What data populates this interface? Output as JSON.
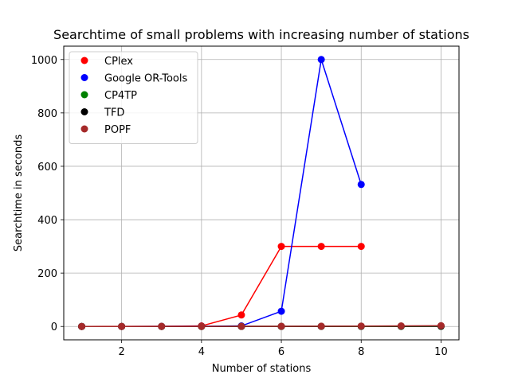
{
  "chart_data": {
    "type": "line",
    "title": "Searchtime of small problems with increasing number of stations",
    "xlabel": "Number of stations",
    "ylabel": "Searchtime in seconds",
    "xlim": [
      0.55,
      10.45
    ],
    "ylim": [
      -50,
      1050
    ],
    "xticks": [
      2,
      4,
      6,
      8,
      10
    ],
    "yticks": [
      0,
      200,
      400,
      600,
      800,
      1000
    ],
    "grid": true,
    "legend_position": "top-left",
    "series": [
      {
        "name": "CPlex",
        "color": "#ff0000",
        "x": [
          1,
          2,
          3,
          4,
          5,
          6,
          7,
          8
        ],
        "y": [
          0.1,
          0.2,
          0.5,
          2,
          43,
          300,
          300,
          300
        ]
      },
      {
        "name": "Google OR-Tools",
        "color": "#0000ff",
        "x": [
          1,
          2,
          3,
          4,
          5,
          6,
          7,
          8
        ],
        "y": [
          0.1,
          0.1,
          0.2,
          0.5,
          2,
          57,
          1000,
          532
        ]
      },
      {
        "name": "CP4TP",
        "color": "#008000",
        "x": [
          1,
          2,
          3,
          4,
          5,
          6,
          7,
          8,
          9,
          10
        ],
        "y": [
          0.05,
          0.05,
          0.1,
          0.1,
          0.2,
          0.2,
          0.3,
          0.3,
          0.4,
          0.5
        ]
      },
      {
        "name": "TFD",
        "color": "#000000",
        "x": [
          1,
          2,
          3,
          4,
          5,
          6,
          7,
          8,
          9,
          10
        ],
        "y": [
          0.05,
          0.05,
          0.1,
          0.1,
          0.2,
          0.3,
          0.4,
          0.5,
          0.8,
          1
        ]
      },
      {
        "name": "POPF",
        "color": "#a52a2a",
        "x": [
          1,
          2,
          3,
          4,
          5,
          6,
          7,
          8,
          9,
          10
        ],
        "y": [
          0.05,
          0.1,
          0.2,
          0.3,
          0.5,
          0.8,
          1,
          1.5,
          2,
          3
        ]
      }
    ]
  }
}
